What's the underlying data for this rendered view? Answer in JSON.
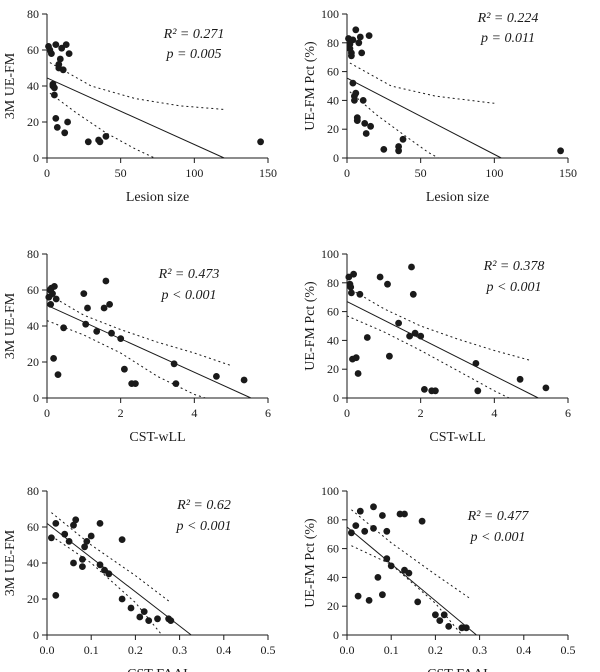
{
  "chart_data": [
    {
      "type": "scatter",
      "xlabel": "Lesion size",
      "ylabel": "3M UE-FM",
      "xlim": [
        0,
        150
      ],
      "ylim": [
        0,
        80
      ],
      "xticks": [
        "0",
        "50",
        "100",
        "150"
      ],
      "yticks": [
        "0",
        "20",
        "40",
        "60",
        "80"
      ],
      "annotation": {
        "r2": "R² = 0.271",
        "p": "p = 0.005"
      },
      "fit": {
        "slope": -0.37,
        "intercept": 44.5
      },
      "ci": {
        "upper": [
          [
            2,
            53
          ],
          [
            30,
            40
          ],
          [
            60,
            33
          ],
          [
            90,
            29
          ],
          [
            120,
            27
          ]
        ],
        "lower": [
          [
            2,
            36
          ],
          [
            20,
            25
          ],
          [
            40,
            14
          ],
          [
            60,
            5
          ],
          [
            73,
            0
          ]
        ]
      },
      "points": [
        [
          1,
          62
        ],
        [
          2,
          60
        ],
        [
          3,
          58
        ],
        [
          4,
          41
        ],
        [
          4,
          40
        ],
        [
          5,
          39
        ],
        [
          5,
          35
        ],
        [
          6,
          63
        ],
        [
          6,
          22
        ],
        [
          7,
          17
        ],
        [
          8,
          52
        ],
        [
          8,
          50
        ],
        [
          9,
          55
        ],
        [
          10,
          61
        ],
        [
          11,
          49
        ],
        [
          12,
          14
        ],
        [
          13,
          63
        ],
        [
          14,
          20
        ],
        [
          15,
          58
        ],
        [
          28,
          9
        ],
        [
          35,
          10
        ],
        [
          36,
          9
        ],
        [
          40,
          12
        ],
        [
          145,
          9
        ]
      ]
    },
    {
      "type": "scatter",
      "xlabel": "Lesion size",
      "ylabel": "UE-FM Pct (%)",
      "xlim": [
        0,
        150
      ],
      "ylim": [
        0,
        100
      ],
      "xticks": [
        "0",
        "50",
        "100",
        "150"
      ],
      "yticks": [
        "0",
        "20",
        "40",
        "60",
        "80",
        "100"
      ],
      "annotation": {
        "r2": "R² = 0.224",
        "p": "p = 0.011"
      },
      "fit": {
        "slope": -0.53,
        "intercept": 55.5
      },
      "ci": {
        "upper": [
          [
            2,
            66
          ],
          [
            30,
            50
          ],
          [
            60,
            43
          ],
          [
            100,
            38
          ]
        ],
        "lower": [
          [
            2,
            46
          ],
          [
            20,
            30
          ],
          [
            40,
            15
          ],
          [
            55,
            4
          ],
          [
            62,
            0
          ]
        ]
      },
      "points": [
        [
          1,
          83
        ],
        [
          2,
          79
        ],
        [
          2,
          76
        ],
        [
          3,
          73
        ],
        [
          3,
          71
        ],
        [
          4,
          82
        ],
        [
          4,
          52
        ],
        [
          5,
          43
        ],
        [
          5,
          40
        ],
        [
          6,
          89
        ],
        [
          6,
          45
        ],
        [
          7,
          28
        ],
        [
          7,
          26
        ],
        [
          8,
          80
        ],
        [
          9,
          84
        ],
        [
          10,
          73
        ],
        [
          11,
          40
        ],
        [
          12,
          24
        ],
        [
          13,
          17
        ],
        [
          15,
          85
        ],
        [
          16,
          22
        ],
        [
          25,
          6
        ],
        [
          35,
          8
        ],
        [
          35,
          5
        ],
        [
          38,
          13
        ],
        [
          145,
          5
        ]
      ]
    },
    {
      "type": "scatter",
      "xlabel": "CST-wLL",
      "ylabel": "3M UE-FM",
      "xlim": [
        0,
        6
      ],
      "ylim": [
        0,
        80
      ],
      "xticks": [
        "0",
        "2",
        "4",
        "6"
      ],
      "yticks": [
        "0",
        "20",
        "40",
        "60",
        "80"
      ],
      "annotation": {
        "r2": "R² = 0.473",
        "p": "p < 0.001"
      },
      "fit": {
        "slope": -9.3,
        "intercept": 51.5
      },
      "ci": {
        "upper": [
          [
            0,
            58
          ],
          [
            1,
            46
          ],
          [
            2,
            38
          ],
          [
            3,
            31
          ],
          [
            4,
            25
          ],
          [
            5,
            18
          ]
        ],
        "lower": [
          [
            0,
            43
          ],
          [
            1,
            35
          ],
          [
            2,
            25
          ],
          [
            3,
            12
          ],
          [
            4,
            2
          ],
          [
            4.3,
            0
          ]
        ]
      },
      "points": [
        [
          0.05,
          56
        ],
        [
          0.08,
          60
        ],
        [
          0.1,
          52
        ],
        [
          0.12,
          61
        ],
        [
          0.15,
          58
        ],
        [
          0.18,
          22
        ],
        [
          0.2,
          62
        ],
        [
          0.25,
          55
        ],
        [
          0.3,
          13
        ],
        [
          0.45,
          39
        ],
        [
          1.0,
          58
        ],
        [
          1.05,
          41
        ],
        [
          1.1,
          50
        ],
        [
          1.35,
          37
        ],
        [
          1.55,
          50
        ],
        [
          1.6,
          65
        ],
        [
          1.7,
          52
        ],
        [
          1.75,
          36
        ],
        [
          2.0,
          33
        ],
        [
          2.1,
          16
        ],
        [
          2.3,
          8
        ],
        [
          2.4,
          8
        ],
        [
          3.45,
          19
        ],
        [
          3.5,
          8
        ],
        [
          4.6,
          12
        ],
        [
          5.35,
          10
        ]
      ]
    },
    {
      "type": "scatter",
      "xlabel": "CST-wLL",
      "ylabel": "UE-FM Pct (%)",
      "xlim": [
        0,
        6
      ],
      "ylim": [
        0,
        100
      ],
      "xticks": [
        "0",
        "2",
        "4",
        "6"
      ],
      "yticks": [
        "0",
        "20",
        "40",
        "60",
        "80",
        "100"
      ],
      "annotation": {
        "r2": "R² = 0.378",
        "p": "p < 0.001"
      },
      "fit": {
        "slope": -12.9,
        "intercept": 67
      },
      "ci": {
        "upper": [
          [
            0,
            77
          ],
          [
            1,
            62
          ],
          [
            2,
            50
          ],
          [
            3,
            41
          ],
          [
            4,
            33
          ],
          [
            5,
            26
          ]
        ],
        "lower": [
          [
            0,
            57
          ],
          [
            1,
            46
          ],
          [
            2,
            33
          ],
          [
            3,
            19
          ],
          [
            4,
            5
          ],
          [
            4.4,
            0
          ]
        ]
      },
      "points": [
        [
          0.05,
          84
        ],
        [
          0.08,
          79
        ],
        [
          0.1,
          77
        ],
        [
          0.12,
          73
        ],
        [
          0.15,
          27
        ],
        [
          0.18,
          86
        ],
        [
          0.25,
          28
        ],
        [
          0.3,
          17
        ],
        [
          0.35,
          72
        ],
        [
          0.55,
          42
        ],
        [
          0.9,
          84
        ],
        [
          1.1,
          79
        ],
        [
          1.15,
          29
        ],
        [
          1.4,
          52
        ],
        [
          1.7,
          43
        ],
        [
          1.75,
          91
        ],
        [
          1.8,
          72
        ],
        [
          1.85,
          45
        ],
        [
          2.0,
          43
        ],
        [
          2.1,
          6
        ],
        [
          2.3,
          5
        ],
        [
          2.4,
          5
        ],
        [
          3.5,
          24
        ],
        [
          3.55,
          5
        ],
        [
          4.7,
          13
        ],
        [
          5.4,
          7
        ]
      ]
    },
    {
      "type": "scatter",
      "xlabel": "CST-FAAI",
      "ylabel": "3M UE-FM",
      "xlim": [
        0,
        0.5
      ],
      "ylim": [
        0,
        80
      ],
      "xticks": [
        "0.0",
        "0.1",
        "0.2",
        "0.3",
        "0.4",
        "0.5"
      ],
      "yticks": [
        "0",
        "20",
        "40",
        "60",
        "80"
      ],
      "annotation": {
        "r2": "R² = 0.62",
        "p": "p < 0.001"
      },
      "fit": {
        "slope": -190,
        "intercept": 62
      },
      "ci": {
        "upper": [
          [
            0.01,
            68
          ],
          [
            0.1,
            50
          ],
          [
            0.2,
            33
          ],
          [
            0.28,
            18
          ]
        ],
        "lower": [
          [
            0.01,
            55
          ],
          [
            0.1,
            40
          ],
          [
            0.2,
            18
          ],
          [
            0.26,
            0
          ]
        ]
      },
      "points": [
        [
          0.01,
          54
        ],
        [
          0.02,
          62
        ],
        [
          0.02,
          22
        ],
        [
          0.04,
          56
        ],
        [
          0.05,
          52
        ],
        [
          0.06,
          61
        ],
        [
          0.06,
          40
        ],
        [
          0.065,
          64
        ],
        [
          0.08,
          38
        ],
        [
          0.08,
          42
        ],
        [
          0.085,
          49
        ],
        [
          0.09,
          52
        ],
        [
          0.1,
          55
        ],
        [
          0.12,
          62
        ],
        [
          0.12,
          39
        ],
        [
          0.13,
          36
        ],
        [
          0.14,
          34
        ],
        [
          0.17,
          53
        ],
        [
          0.17,
          20
        ],
        [
          0.19,
          15
        ],
        [
          0.21,
          10
        ],
        [
          0.22,
          13
        ],
        [
          0.23,
          8
        ],
        [
          0.25,
          9
        ],
        [
          0.275,
          9
        ],
        [
          0.28,
          8
        ]
      ]
    },
    {
      "type": "scatter",
      "xlabel": "CST-FAAI",
      "ylabel": "UE-FM Pct (%)",
      "xlim": [
        0,
        0.5
      ],
      "ylim": [
        0,
        100
      ],
      "xticks": [
        "0.0",
        "0.1",
        "0.2",
        "0.3",
        "0.4",
        "0.5"
      ],
      "yticks": [
        "0",
        "20",
        "40",
        "60",
        "80",
        "100"
      ],
      "annotation": {
        "r2": "R² = 0.477",
        "p": "p < 0.001"
      },
      "fit": {
        "slope": -256,
        "intercept": 75
      },
      "ci": {
        "upper": [
          [
            0.01,
            87
          ],
          [
            0.1,
            64
          ],
          [
            0.2,
            42
          ],
          [
            0.28,
            25
          ]
        ],
        "lower": [
          [
            0.01,
            62
          ],
          [
            0.1,
            49
          ],
          [
            0.2,
            22
          ],
          [
            0.26,
            0
          ]
        ]
      },
      "points": [
        [
          0.01,
          71
        ],
        [
          0.02,
          76
        ],
        [
          0.025,
          27
        ],
        [
          0.03,
          86
        ],
        [
          0.04,
          72
        ],
        [
          0.05,
          24
        ],
        [
          0.06,
          89
        ],
        [
          0.06,
          74
        ],
        [
          0.07,
          40
        ],
        [
          0.08,
          83
        ],
        [
          0.08,
          28
        ],
        [
          0.09,
          72
        ],
        [
          0.09,
          53
        ],
        [
          0.1,
          48
        ],
        [
          0.12,
          84
        ],
        [
          0.13,
          84
        ],
        [
          0.13,
          45
        ],
        [
          0.14,
          43
        ],
        [
          0.16,
          23
        ],
        [
          0.17,
          79
        ],
        [
          0.2,
          14
        ],
        [
          0.21,
          10
        ],
        [
          0.22,
          14
        ],
        [
          0.23,
          6
        ],
        [
          0.26,
          5
        ],
        [
          0.27,
          5
        ]
      ]
    }
  ]
}
